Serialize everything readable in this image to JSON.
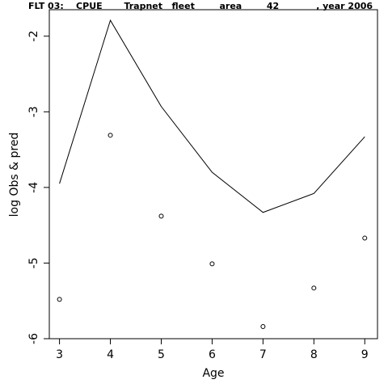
{
  "chart_data": {
    "type": "line",
    "title": "FLT 03:    CPUE       Trapnet   fleet        area        42            , year 2006",
    "xlabel": "Age",
    "ylabel": "log Obs & pred",
    "x": [
      3,
      4,
      5,
      6,
      7,
      8,
      9
    ],
    "x_ticks": [
      "3",
      "4",
      "5",
      "6",
      "7",
      "8",
      "9"
    ],
    "y_ticks": [
      "-2",
      "-3",
      "-4",
      "-5",
      "-6"
    ],
    "ylim": [
      -6,
      -1.65
    ],
    "xlim": [
      2.8,
      9.25
    ],
    "grid": false,
    "series": [
      {
        "kind": "predicted-line",
        "values": [
          -3.95,
          -1.79,
          -2.93,
          -3.8,
          -4.33,
          -4.08,
          -3.33
        ]
      },
      {
        "kind": "observed-points",
        "values": [
          -5.48,
          -3.31,
          -4.38,
          -5.01,
          -5.84,
          -5.33,
          -4.67
        ]
      }
    ],
    "colors": {
      "line": "#000000",
      "points": "#000000",
      "frame": "#000000",
      "background": "#ffffff"
    }
  }
}
